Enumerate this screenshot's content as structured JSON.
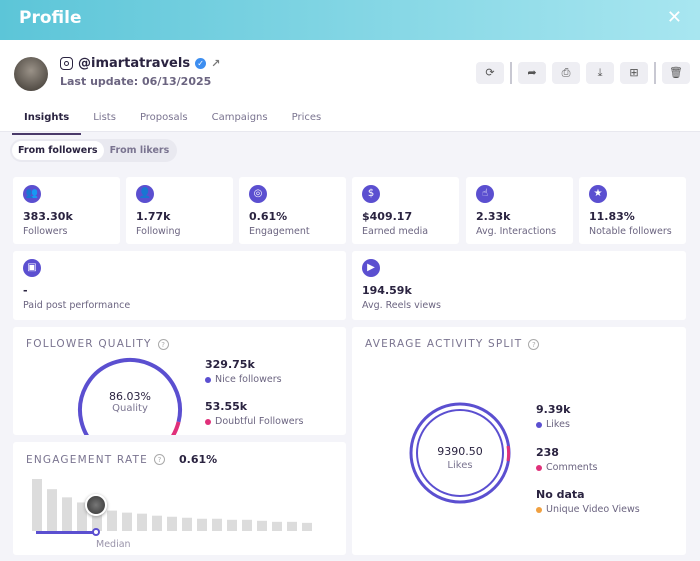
{
  "header": {
    "title": "Profile",
    "close_icon": "close-icon"
  },
  "profile": {
    "handle": "@imartatravels",
    "last_update": "Last update: 06/13/2025"
  },
  "actions": [
    "refresh-icon",
    "share-icon",
    "print-icon",
    "download-icon",
    "add-icon",
    "trash-icon"
  ],
  "tabs": [
    {
      "label": "Insights",
      "active": true
    },
    {
      "label": "Lists"
    },
    {
      "label": "Proposals"
    },
    {
      "label": "Campaigns"
    },
    {
      "label": "Prices"
    }
  ],
  "segment": {
    "options": [
      "From followers",
      "From likers"
    ],
    "selected": "From followers"
  },
  "stats": [
    {
      "value": "383.30k",
      "label": "Followers",
      "icon": "followers-icon"
    },
    {
      "value": "1.77k",
      "label": "Following",
      "icon": "following-icon"
    },
    {
      "value": "0.61%",
      "label": "Engagement",
      "icon": "target-icon"
    },
    {
      "value": "$409.17",
      "label": "Earned media",
      "icon": "dollar-icon"
    },
    {
      "value": "2.33k",
      "label": "Avg. Interactions",
      "icon": "hand-pointer-icon"
    },
    {
      "value": "11.83%",
      "label": "Notable followers",
      "icon": "user-star-icon"
    }
  ],
  "stats2": [
    {
      "value": "-",
      "label": "Paid post performance",
      "icon": "paid-post-icon"
    },
    {
      "value": "194.59k",
      "label": "Avg. Reels views",
      "icon": "play-icon"
    }
  ],
  "follower_quality": {
    "title": "FOLLOWER QUALITY",
    "value": "86.03%",
    "label": "Quality",
    "percent": 86.03,
    "nice": {
      "value": "329.75k",
      "label": "Nice followers",
      "color": "#5b4fd0"
    },
    "doubtful": {
      "value": "53.55k",
      "label": "Doubtful Followers",
      "color": "#e0307a"
    }
  },
  "engagement_rate": {
    "title": "ENGAGEMENT RATE",
    "value": "0.61%",
    "median_label": "Median",
    "distribution": [
      51,
      41,
      33,
      28,
      25,
      20,
      18,
      17,
      15,
      14,
      13,
      12,
      12,
      11,
      11,
      10,
      9,
      9,
      8
    ]
  },
  "activity": {
    "title": "AVERAGE ACTIVITY SPLIT",
    "center_value": "9390.50",
    "center_label": "Likes",
    "items": [
      {
        "value": "9.39k",
        "label": "Likes",
        "color": "#5b4fd0"
      },
      {
        "value": "238",
        "label": "Comments",
        "color": "#e0307a"
      },
      {
        "value": "No data",
        "label": "Unique Video Views",
        "color": "#f0a040"
      }
    ]
  }
}
